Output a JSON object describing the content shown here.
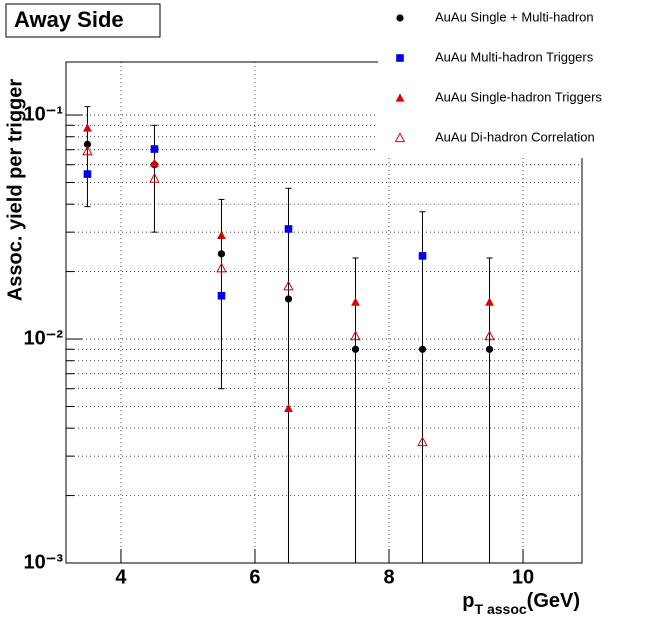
{
  "chart_data": {
    "type": "scatter",
    "title": "Away Side",
    "y_label": "Assoc. yield per trigger",
    "x_label": "p",
    "x_label_subscript": "T assoc",
    "x_label_unit": "(GeV)",
    "x": [
      3.5,
      4.5,
      5.5,
      6.5,
      7.5,
      8.5,
      9.5
    ],
    "xlim": [
      3.18,
      10.88
    ],
    "xticks": [
      4,
      6,
      8,
      10
    ],
    "ylim": [
      0.001,
      0.1725
    ],
    "log_y": true,
    "yticks": [
      {
        "value": 0.001,
        "label": "10⁻³"
      },
      {
        "value": 0.01,
        "label": "10⁻²"
      },
      {
        "value": 0.1,
        "label": "10⁻¹"
      }
    ],
    "y_minor_ticks": [
      0.002,
      0.003,
      0.004,
      0.005,
      0.006,
      0.007,
      0.008,
      0.009,
      0.02,
      0.03,
      0.04,
      0.05,
      0.06,
      0.07,
      0.08,
      0.09
    ],
    "grid": true,
    "legend": "top-right",
    "series": [
      {
        "name": "AuAu Single + Multi-hadron",
        "color": "#000000",
        "marker": "circle",
        "values": [
          0.074,
          0.06,
          0.024,
          0.0151,
          0.009,
          0.009,
          0.009
        ],
        "errors": [
          0.035,
          0.03,
          0.018,
          0.032,
          0.014,
          0.028,
          0.014
        ]
      },
      {
        "name": "AuAu Multi-hadron Triggers",
        "color": "#0000ee",
        "marker": "square",
        "values": [
          0.0545,
          0.0705,
          0.0156,
          0.031,
          null,
          0.0235,
          null
        ]
      },
      {
        "name": "AuAu Single-hadron Triggers",
        "color": "#dd0000",
        "marker": "triangle",
        "values": [
          0.0875,
          0.061,
          0.029,
          0.0049,
          0.0146,
          null,
          0.0146
        ]
      },
      {
        "name": "AuAu Di-hadron Correlation",
        "color": "#dd0000",
        "marker": "open-triangle",
        "values": [
          0.069,
          0.052,
          0.0207,
          0.0172,
          0.0103,
          0.00347,
          0.0103
        ]
      }
    ]
  }
}
